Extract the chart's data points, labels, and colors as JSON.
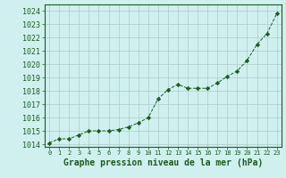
{
  "x": [
    0,
    1,
    2,
    3,
    4,
    5,
    6,
    7,
    8,
    9,
    10,
    11,
    12,
    13,
    14,
    15,
    16,
    17,
    18,
    19,
    20,
    21,
    22,
    23
  ],
  "y": [
    1014.1,
    1014.4,
    1014.4,
    1014.7,
    1015.0,
    1015.0,
    1015.0,
    1015.1,
    1015.3,
    1015.6,
    1016.0,
    1017.4,
    1018.1,
    1018.5,
    1018.2,
    1018.2,
    1018.2,
    1018.6,
    1019.1,
    1019.5,
    1020.3,
    1021.5,
    1022.3,
    1023.8
  ],
  "ylim": [
    1013.8,
    1024.5
  ],
  "xlim": [
    -0.5,
    23.5
  ],
  "yticks": [
    1014,
    1015,
    1016,
    1017,
    1018,
    1019,
    1020,
    1021,
    1022,
    1023,
    1024
  ],
  "xticks": [
    0,
    1,
    2,
    3,
    4,
    5,
    6,
    7,
    8,
    9,
    10,
    11,
    12,
    13,
    14,
    15,
    16,
    17,
    18,
    19,
    20,
    21,
    22,
    23
  ],
  "line_color": "#1a5c1a",
  "marker_color": "#1a5c1a",
  "bg_color": "#d0f0f0",
  "grid_color": "#b0c8c8",
  "xlabel": "Graphe pression niveau de la mer (hPa)",
  "xlabel_color": "#1a5c1a",
  "tick_color": "#1a5c1a",
  "axis_color": "#1a5c1a",
  "xlabel_fontsize": 7.0,
  "ytick_fontsize": 6.0,
  "xtick_fontsize": 5.0
}
